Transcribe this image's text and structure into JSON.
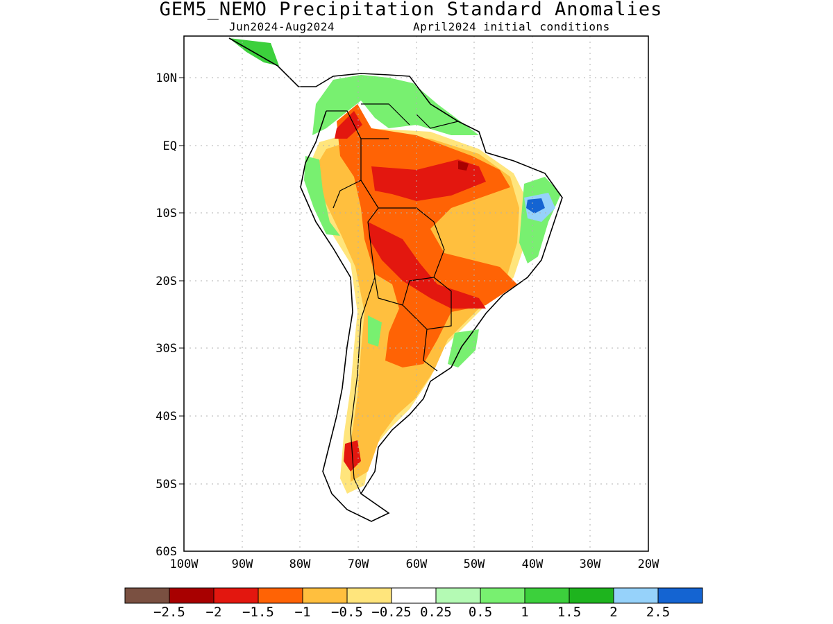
{
  "title": "GEM5_NEMO Precipitation Standard Anomalies",
  "subtitle_period": "Jun2024-Aug2024",
  "subtitle_init": "April2024 initial conditions",
  "map": {
    "lon_ticks": [
      "100W",
      "90W",
      "80W",
      "70W",
      "60W",
      "50W",
      "40W",
      "30W",
      "20W"
    ],
    "lat_ticks": [
      "10N",
      "EQ",
      "10S",
      "20S",
      "30S",
      "40S",
      "50S",
      "60S"
    ],
    "lon_range": [
      -100,
      -20
    ],
    "lat_range": [
      -60,
      16
    ],
    "grid": true
  },
  "colorbar": {
    "colors": [
      "#7a5041",
      "#a80000",
      "#e3170f",
      "#ff6305",
      "#ffbf3e",
      "#ffe57c",
      "#ffffff",
      "#b4fab4",
      "#78f070",
      "#3cd03c",
      "#1eb41e",
      "#96d2fa",
      "#1464d2"
    ],
    "labels": [
      "-2.5",
      "-2",
      "-1.5",
      "-1",
      "-0.5",
      "-0.25",
      "0.25",
      "0.5",
      "1",
      "1.5",
      "2",
      "2.5"
    ]
  }
}
